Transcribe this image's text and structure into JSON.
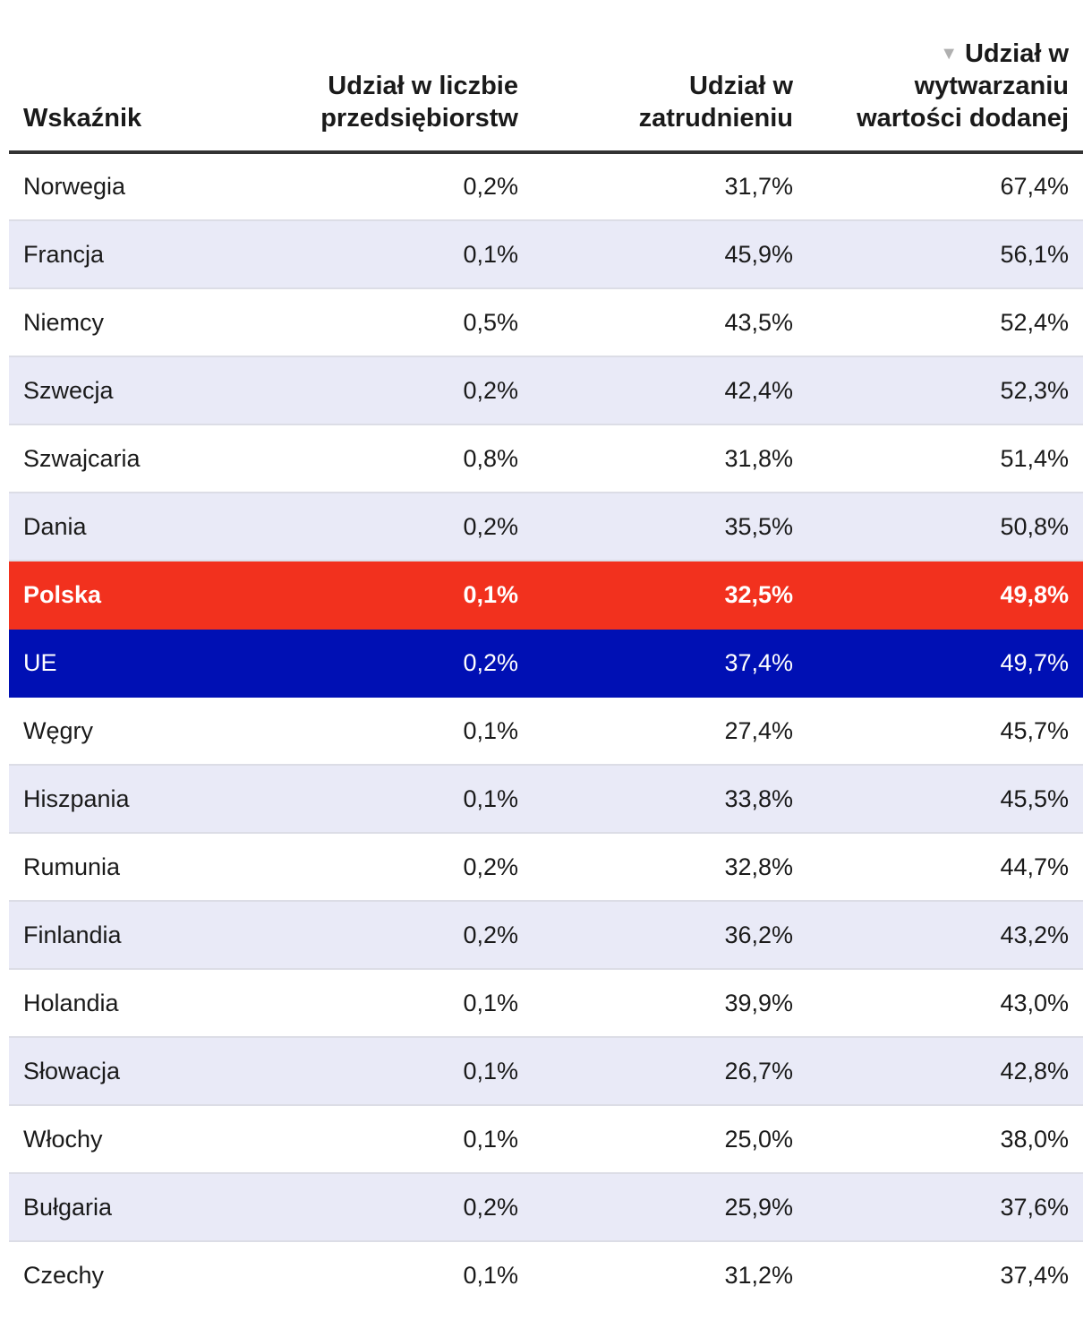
{
  "chart_data": {
    "type": "table",
    "columns": [
      {
        "label": "Wskaźnik"
      },
      {
        "label": "Udział w liczbie przedsiębiorstw"
      },
      {
        "label": "Udział w zatrudnieniu"
      },
      {
        "label": "Udział w wytwarzaniu wartości dodanej",
        "sorted": "desc"
      }
    ],
    "rows": [
      {
        "country": "Norwegia",
        "enterprises": "0,2%",
        "employment": "31,7%",
        "value_added": "67,4%",
        "highlight": ""
      },
      {
        "country": "Francja",
        "enterprises": "0,1%",
        "employment": "45,9%",
        "value_added": "56,1%",
        "highlight": ""
      },
      {
        "country": "Niemcy",
        "enterprises": "0,5%",
        "employment": "43,5%",
        "value_added": "52,4%",
        "highlight": ""
      },
      {
        "country": "Szwecja",
        "enterprises": "0,2%",
        "employment": "42,4%",
        "value_added": "52,3%",
        "highlight": ""
      },
      {
        "country": "Szwajcaria",
        "enterprises": "0,8%",
        "employment": "31,8%",
        "value_added": "51,4%",
        "highlight": ""
      },
      {
        "country": "Dania",
        "enterprises": "0,2%",
        "employment": "35,5%",
        "value_added": "50,8%",
        "highlight": ""
      },
      {
        "country": "Polska",
        "enterprises": "0,1%",
        "employment": "32,5%",
        "value_added": "49,8%",
        "highlight": "red"
      },
      {
        "country": "UE",
        "enterprises": "0,2%",
        "employment": "37,4%",
        "value_added": "49,7%",
        "highlight": "blue"
      },
      {
        "country": "Węgry",
        "enterprises": "0,1%",
        "employment": "27,4%",
        "value_added": "45,7%",
        "highlight": ""
      },
      {
        "country": "Hiszpania",
        "enterprises": "0,1%",
        "employment": "33,8%",
        "value_added": "45,5%",
        "highlight": ""
      },
      {
        "country": "Rumunia",
        "enterprises": "0,2%",
        "employment": "32,8%",
        "value_added": "44,7%",
        "highlight": ""
      },
      {
        "country": "Finlandia",
        "enterprises": "0,2%",
        "employment": "36,2%",
        "value_added": "43,2%",
        "highlight": ""
      },
      {
        "country": "Holandia",
        "enterprises": "0,1%",
        "employment": "39,9%",
        "value_added": "43,0%",
        "highlight": ""
      },
      {
        "country": "Słowacja",
        "enterprises": "0,1%",
        "employment": "26,7%",
        "value_added": "42,8%",
        "highlight": ""
      },
      {
        "country": "Włochy",
        "enterprises": "0,1%",
        "employment": "25,0%",
        "value_added": "38,0%",
        "highlight": ""
      },
      {
        "country": "Bułgaria",
        "enterprises": "0,2%",
        "employment": "25,9%",
        "value_added": "37,6%",
        "highlight": ""
      },
      {
        "country": "Czechy",
        "enterprises": "0,1%",
        "employment": "31,2%",
        "value_added": "37,4%",
        "highlight": ""
      }
    ],
    "colors": {
      "highlight_red": "#f2311e",
      "highlight_blue": "#0010b4",
      "zebra": "#e9eaf7"
    },
    "sort_icon": "triangle-down-icon"
  }
}
